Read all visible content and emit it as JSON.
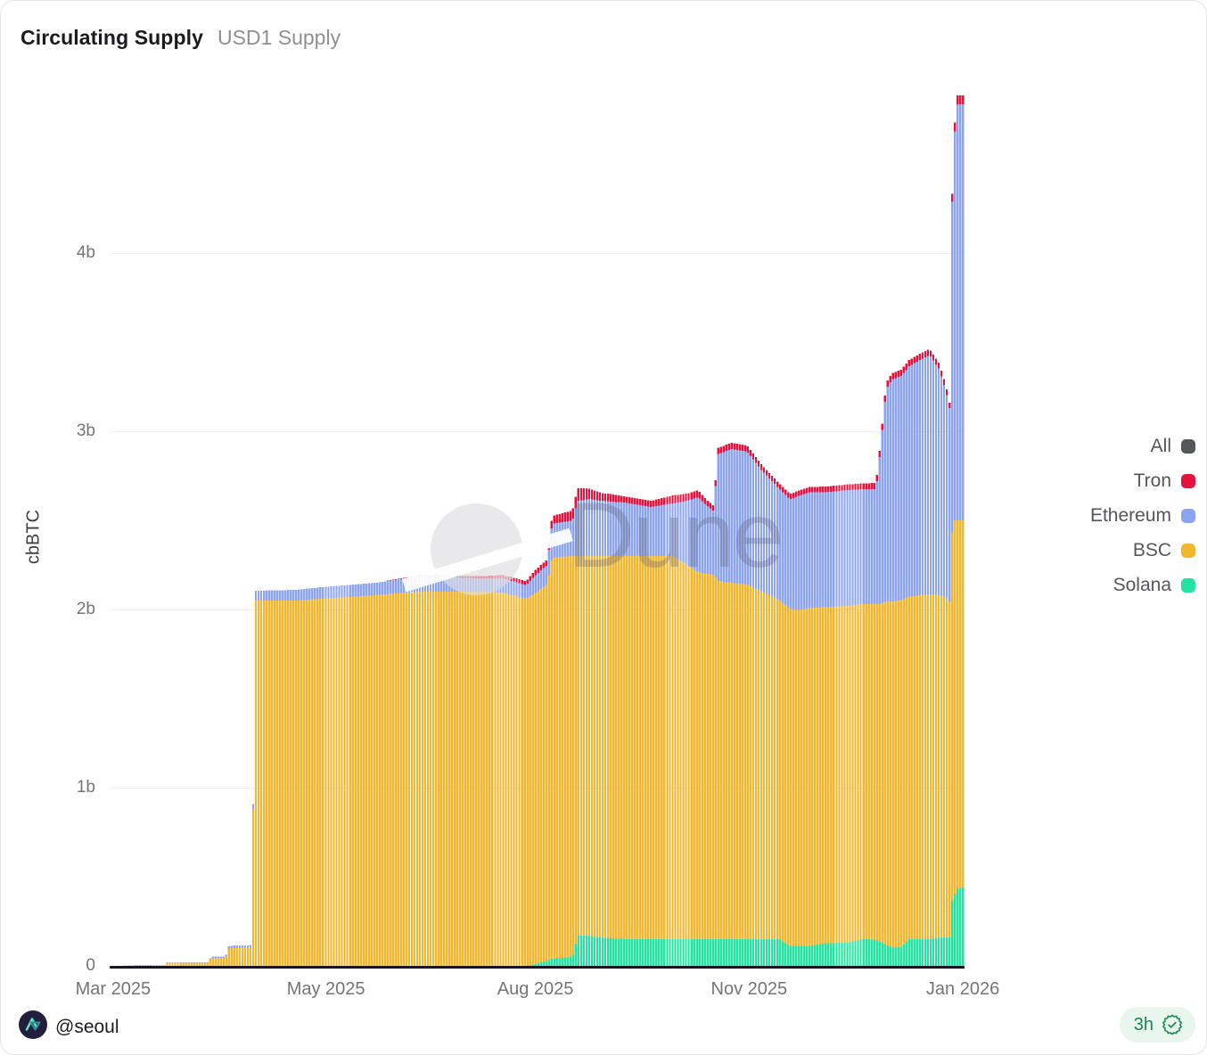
{
  "header": {
    "title": "Circulating Supply",
    "subtitle": "USD1 Supply"
  },
  "watermark": {
    "text": "Dune",
    "logo": "dune-circle-slash"
  },
  "footer": {
    "author": "@seoul",
    "avatar_icon": "dune-analyst-logo",
    "badge_time": "3h",
    "badge_icon": "verified-seal-check",
    "badge_color": "#178a4c",
    "badge_bg": "#e9f6ee"
  },
  "chart_data": {
    "type": "bar",
    "variant": "stacked-daily-bars",
    "title": "Circulating Supply",
    "subtitle": "USD1 Supply",
    "xlabel": "",
    "ylabel": "cbBTC",
    "unit": "billions of tokens",
    "ylim": [
      0,
      4.95
    ],
    "grid": "horizontal-only",
    "yticks": [
      {
        "v": 0,
        "label": "0"
      },
      {
        "v": 1,
        "label": "1b"
      },
      {
        "v": 2,
        "label": "2b"
      },
      {
        "v": 3,
        "label": "3b"
      },
      {
        "v": 4,
        "label": "4b"
      }
    ],
    "xticks": [
      {
        "label": "Mar 2025",
        "pos": 0.004
      },
      {
        "label": "May 2025",
        "pos": 0.253
      },
      {
        "label": "Aug 2025",
        "pos": 0.498
      },
      {
        "label": "Nov 2025",
        "pos": 0.748
      },
      {
        "label": "Jan 2026",
        "pos": 0.998
      }
    ],
    "legend_position": "right",
    "legend": [
      {
        "name": "All",
        "color": "#56575B",
        "plotted": false
      },
      {
        "name": "Tron",
        "color": "#E5123D",
        "plotted": true
      },
      {
        "name": "Ethereum",
        "color": "#8CA4F0",
        "plotted": true
      },
      {
        "name": "BSC",
        "color": "#F3B72E",
        "plotted": true
      },
      {
        "name": "Solana",
        "color": "#23E3A2",
        "plotted": true
      }
    ],
    "stack_order": [
      "Solana",
      "BSC",
      "Ethereum",
      "Tron"
    ],
    "bar_count": 318,
    "samples_format": [
      "x_fraction_of_axis (Mar 2025 to Jan 2026)",
      "Solana_b",
      "BSC_b",
      "Ethereum_b",
      "Tron_b"
    ],
    "samples": [
      [
        0.0,
        0,
        0,
        0,
        0
      ],
      [
        0.02,
        0,
        0.002,
        0,
        0
      ],
      [
        0.032,
        0,
        0.005,
        0.001,
        0
      ],
      [
        0.064,
        0,
        0.005,
        0.001,
        0
      ],
      [
        0.066,
        0,
        0.018,
        0.003,
        0
      ],
      [
        0.114,
        0,
        0.018,
        0.003,
        0
      ],
      [
        0.118,
        0,
        0.045,
        0.007,
        0
      ],
      [
        0.135,
        0,
        0.045,
        0.007,
        0
      ],
      [
        0.139,
        0,
        0.1,
        0.013,
        0
      ],
      [
        0.166,
        0,
        0.102,
        0.015,
        0
      ],
      [
        0.169,
        0,
        2.05,
        0.055,
        0
      ],
      [
        0.217,
        0,
        2.05,
        0.06,
        0
      ],
      [
        0.248,
        0,
        2.06,
        0.065,
        0
      ],
      [
        0.311,
        0,
        2.08,
        0.07,
        0
      ],
      [
        0.363,
        0,
        2.1,
        0.09,
        0.004
      ],
      [
        0.405,
        0,
        2.1,
        0.08,
        0.008
      ],
      [
        0.436,
        0,
        2.1,
        0.075,
        0.012
      ],
      [
        0.46,
        0,
        2.095,
        0.08,
        0.018
      ],
      [
        0.478,
        0,
        2.07,
        0.08,
        0.022
      ],
      [
        0.487,
        0,
        2.06,
        0.075,
        0.022
      ],
      [
        0.498,
        0.01,
        2.08,
        0.1,
        0.03
      ],
      [
        0.512,
        0.03,
        2.11,
        0.11,
        0.03
      ],
      [
        0.518,
        0.04,
        2.25,
        0.19,
        0.045
      ],
      [
        0.542,
        0.05,
        2.25,
        0.2,
        0.055
      ],
      [
        0.548,
        0.17,
        2.13,
        0.31,
        0.07
      ],
      [
        0.56,
        0.17,
        2.13,
        0.32,
        0.06
      ],
      [
        0.575,
        0.16,
        2.14,
        0.31,
        0.045
      ],
      [
        0.603,
        0.15,
        2.15,
        0.3,
        0.035
      ],
      [
        0.634,
        0.15,
        2.15,
        0.275,
        0.035
      ],
      [
        0.66,
        0.15,
        2.15,
        0.295,
        0.045
      ],
      [
        0.676,
        0.15,
        2.1,
        0.36,
        0.04
      ],
      [
        0.689,
        0.15,
        2.06,
        0.42,
        0.04
      ],
      [
        0.7,
        0.15,
        2.05,
        0.38,
        0.03
      ],
      [
        0.708,
        0.15,
        2.045,
        0.355,
        0.03
      ],
      [
        0.712,
        0.15,
        2.01,
        0.71,
        0.035
      ],
      [
        0.728,
        0.15,
        2.0,
        0.75,
        0.035
      ],
      [
        0.747,
        0.15,
        1.99,
        0.745,
        0.035
      ],
      [
        0.764,
        0.15,
        1.95,
        0.68,
        0.03
      ],
      [
        0.785,
        0.15,
        1.9,
        0.625,
        0.03
      ],
      [
        0.797,
        0.112,
        1.89,
        0.615,
        0.03
      ],
      [
        0.807,
        0.112,
        1.885,
        0.64,
        0.03
      ],
      [
        0.82,
        0.112,
        1.895,
        0.65,
        0.03
      ],
      [
        0.84,
        0.128,
        1.885,
        0.645,
        0.032
      ],
      [
        0.865,
        0.13,
        1.89,
        0.65,
        0.032
      ],
      [
        0.882,
        0.15,
        1.88,
        0.645,
        0.032
      ],
      [
        0.898,
        0.148,
        1.882,
        0.645,
        0.035
      ],
      [
        0.903,
        0.135,
        1.895,
        0.86,
        0.035
      ],
      [
        0.91,
        0.118,
        1.93,
        1.19,
        0.035
      ],
      [
        0.917,
        0.105,
        1.94,
        1.245,
        0.035
      ],
      [
        0.928,
        0.108,
        1.945,
        1.258,
        0.035
      ],
      [
        0.937,
        0.15,
        1.92,
        1.295,
        0.035
      ],
      [
        0.952,
        0.152,
        1.93,
        1.325,
        0.035
      ],
      [
        0.961,
        0.152,
        1.932,
        1.343,
        0.035
      ],
      [
        0.972,
        0.16,
        1.92,
        1.27,
        0.032
      ],
      [
        0.98,
        0.16,
        1.908,
        1.16,
        0.032
      ],
      [
        0.9852,
        0.16,
        1.878,
        1.068,
        0.03
      ],
      [
        0.9868,
        0.36,
        2.058,
        1.79,
        0.042
      ],
      [
        0.99,
        0.4,
        2.1,
        2.148,
        0.05
      ],
      [
        0.993,
        0.432,
        2.068,
        2.335,
        0.05
      ],
      [
        1.0,
        0.44,
        2.06,
        2.335,
        0.05
      ]
    ]
  }
}
